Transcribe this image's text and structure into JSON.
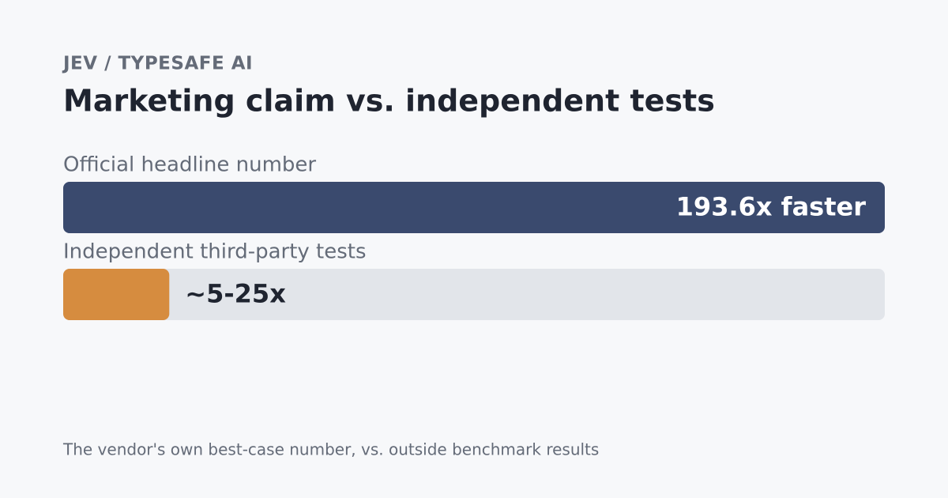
{
  "chart_data": {
    "type": "bar",
    "orientation": "horizontal",
    "kicker": "JEV / TYPESAFE AI",
    "title": "Marketing claim vs. independent tests",
    "categories": [
      "Official headline number",
      "Independent third-party tests"
    ],
    "values": [
      193.6,
      25
    ],
    "value_labels": [
      "193.6x faster",
      "~5-25x"
    ],
    "colors": [
      "#3a4a6e",
      "#d68c3f"
    ],
    "track_color": "#e2e5ea",
    "xlim": [
      0,
      193.6
    ],
    "caption": "The vendor's own best-case number, vs. outside benchmark results"
  }
}
